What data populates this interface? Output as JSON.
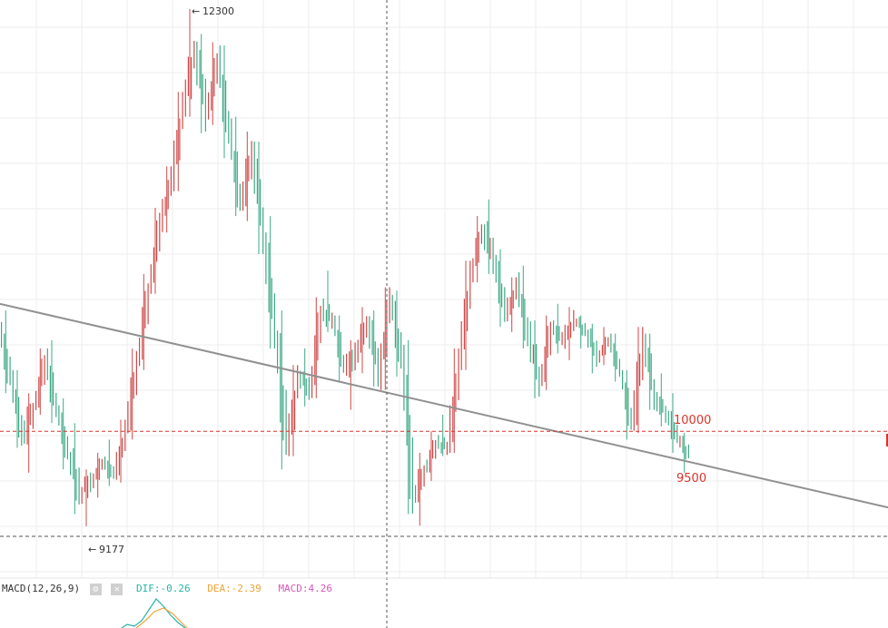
{
  "chart_data": {
    "type": "candlestick",
    "y_domain_price": [
      9050,
      12300
    ],
    "highest_label": "12300",
    "lowest_label": "9177",
    "levels": [
      {
        "value": "10000",
        "color": "#d9342b"
      },
      {
        "value": "9500",
        "color": "#d9342b"
      }
    ],
    "trendline": {
      "from_price": 10520,
      "to_price": 9290
    },
    "candles_summary": "dense candlestick series: rises from ~9200 to peak 12300, falls, ranges 9900-10600, dips to ~9200, rebounds to ~11100 then declines toward 9700",
    "candles": [
      [
        10350,
        10480,
        9980,
        10050
      ],
      [
        10050,
        10120,
        9650,
        9720
      ],
      [
        9720,
        9980,
        9500,
        9900
      ],
      [
        9900,
        10250,
        9850,
        10180
      ],
      [
        10180,
        10300,
        9800,
        9870
      ],
      [
        9870,
        9950,
        9520,
        9600
      ],
      [
        9600,
        9800,
        9250,
        9380
      ],
      [
        9380,
        9520,
        9177,
        9450
      ],
      [
        9450,
        9620,
        9350,
        9560
      ],
      [
        9560,
        9700,
        9420,
        9480
      ],
      [
        9480,
        9820,
        9440,
        9760
      ],
      [
        9760,
        10250,
        9700,
        10180
      ],
      [
        10180,
        10700,
        10120,
        10620
      ],
      [
        10620,
        11100,
        10580,
        11020
      ],
      [
        11020,
        11350,
        10950,
        11280
      ],
      [
        11280,
        11800,
        11200,
        11720
      ],
      [
        11720,
        12300,
        11650,
        12050
      ],
      [
        12050,
        12150,
        11550,
        11680
      ],
      [
        11680,
        12100,
        11600,
        11980
      ],
      [
        11980,
        12080,
        11400,
        11520
      ],
      [
        11520,
        11650,
        11050,
        11120
      ],
      [
        11120,
        11560,
        11020,
        11460
      ],
      [
        11460,
        11500,
        10820,
        10900
      ],
      [
        10900,
        11050,
        10250,
        10320
      ],
      [
        10320,
        10480,
        9520,
        9650
      ],
      [
        9650,
        10150,
        9600,
        10080
      ],
      [
        10080,
        10250,
        9900,
        10000
      ],
      [
        10000,
        10560,
        9950,
        10480
      ],
      [
        10480,
        10720,
        10350,
        10420
      ],
      [
        10420,
        10450,
        10050,
        10120
      ],
      [
        10120,
        10300,
        9880,
        10220
      ],
      [
        10220,
        10500,
        10100,
        10420
      ],
      [
        10420,
        10480,
        10020,
        10100
      ],
      [
        10100,
        10620,
        10000,
        10540
      ],
      [
        10540,
        10600,
        10080,
        10150
      ],
      [
        10150,
        10300,
        9250,
        9350
      ],
      [
        9350,
        9620,
        9180,
        9520
      ],
      [
        9520,
        9750,
        9450,
        9680
      ],
      [
        9680,
        9850,
        9600,
        9650
      ],
      [
        9650,
        10250,
        9620,
        10180
      ],
      [
        10180,
        10780,
        10120,
        10700
      ],
      [
        10700,
        11050,
        10650,
        10980
      ],
      [
        10980,
        11150,
        10700,
        10780
      ],
      [
        10780,
        10850,
        10380,
        10450
      ],
      [
        10450,
        10680,
        10350,
        10620
      ],
      [
        10620,
        10750,
        10250,
        10320
      ],
      [
        10320,
        10420,
        9950,
        10050
      ],
      [
        10050,
        10450,
        10000,
        10380
      ],
      [
        10380,
        10520,
        10220,
        10300
      ],
      [
        10300,
        10500,
        10180,
        10420
      ],
      [
        10420,
        10450,
        10250,
        10350
      ],
      [
        10350,
        10400,
        10100,
        10200
      ],
      [
        10200,
        10380,
        10150,
        10300
      ],
      [
        10300,
        10340,
        10050,
        10100
      ],
      [
        10100,
        10120,
        9700,
        9780
      ],
      [
        9780,
        10380,
        9740,
        10320
      ],
      [
        10320,
        10340,
        9880,
        9950
      ],
      [
        9950,
        10100,
        9780,
        9850
      ],
      [
        9850,
        9980,
        9620,
        9700
      ],
      [
        9700,
        9740,
        9500,
        9600
      ]
    ]
  },
  "macd": {
    "name": "MACD(12,26,9)",
    "gear_icon": "⚙",
    "close_icon": "✕",
    "dif": "DIF:-0.26",
    "dea": "DEA:-2.39",
    "macd_value": "MACD:4.26",
    "colors": {
      "dif": "#26b5a7",
      "dea": "#f0a33a",
      "macd": "#d65ab8"
    }
  },
  "colors": {
    "up": "#cf4a4a",
    "down": "#3ea986",
    "grid": "#eeeeee",
    "trendline": "#909090",
    "level_line": "#d9342b",
    "crosshair": "#555555"
  }
}
